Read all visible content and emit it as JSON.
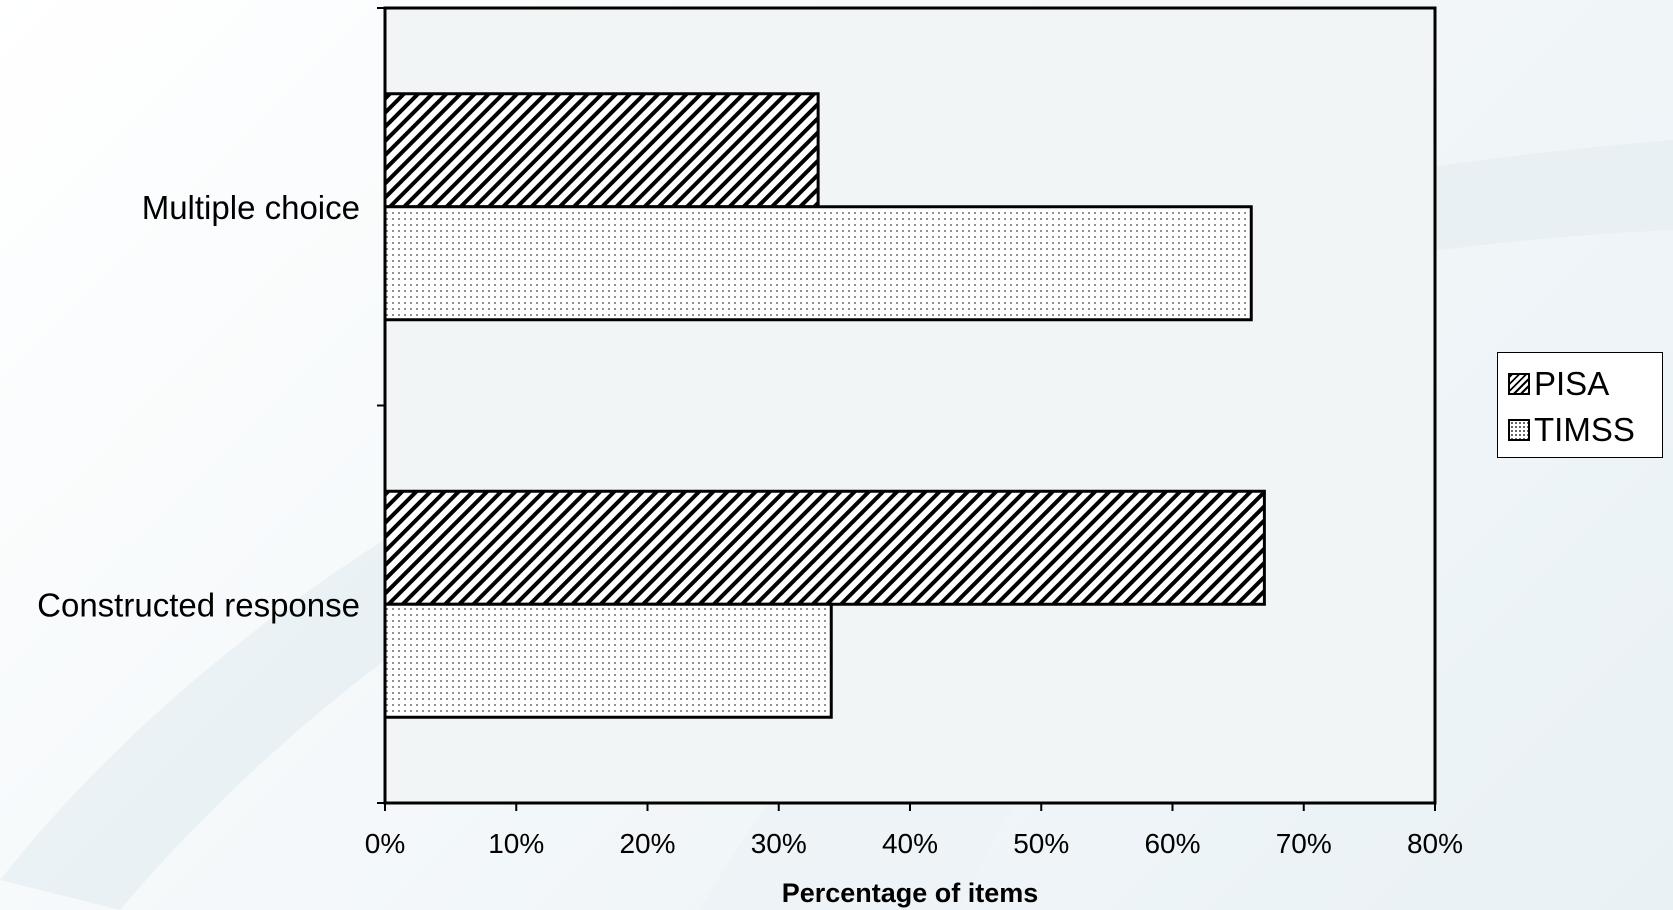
{
  "chart_data": {
    "type": "bar",
    "orientation": "horizontal",
    "categories": [
      "Multiple choice",
      "Constructed response"
    ],
    "series": [
      {
        "name": "PISA",
        "values": [
          33,
          67
        ],
        "pattern": "diagonal-hatch"
      },
      {
        "name": "TIMSS",
        "values": [
          66,
          34
        ],
        "pattern": "dots"
      }
    ],
    "xlabel": "Percentage of items",
    "ylabel": "",
    "xlim": [
      0,
      80
    ],
    "xticks": [
      "0%",
      "10%",
      "20%",
      "30%",
      "40%",
      "50%",
      "60%",
      "70%",
      "80%"
    ],
    "grid": false,
    "legend_position": "right"
  },
  "colors": {
    "plot_background": "#f2f5f5",
    "bar_stroke": "#000000",
    "bar_fill": "#ffffff"
  }
}
